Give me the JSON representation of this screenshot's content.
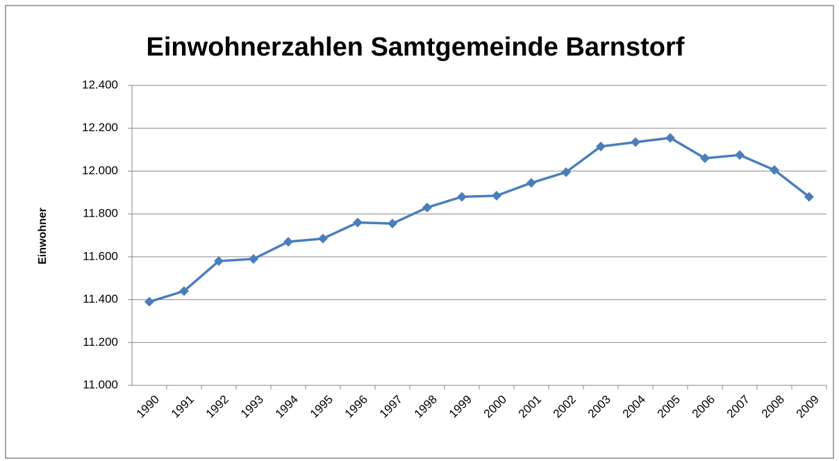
{
  "chart_data": {
    "type": "line",
    "title": "Einwohnerzahlen Samtgemeinde Barnstorf",
    "y_label": "Einwohner",
    "categories": [
      "1990",
      "1991",
      "1992",
      "1993",
      "1994",
      "1995",
      "1996",
      "1997",
      "1998",
      "1999",
      "2000",
      "2001",
      "2002",
      "2003",
      "2004",
      "2005",
      "2006",
      "2007",
      "2008",
      "2009"
    ],
    "series": [
      {
        "name": "Einwohner",
        "color": "#4a7ebb",
        "values": [
          11390,
          11440,
          11580,
          11590,
          11670,
          11685,
          11760,
          11755,
          11830,
          11880,
          11885,
          11945,
          11995,
          12115,
          12135,
          12155,
          12060,
          12075,
          12005,
          11880
        ]
      }
    ],
    "ylim": [
      11000,
      12400
    ],
    "yticks": [
      {
        "value": 11000,
        "label": "11.000"
      },
      {
        "value": 11200,
        "label": "11.200"
      },
      {
        "value": 11400,
        "label": "11.400"
      },
      {
        "value": 11600,
        "label": "11.600"
      },
      {
        "value": 11800,
        "label": "11.800"
      },
      {
        "value": 12000,
        "label": "12.000"
      },
      {
        "value": 12200,
        "label": "12.200"
      },
      {
        "value": 12400,
        "label": "12.400"
      }
    ],
    "grid": true
  }
}
